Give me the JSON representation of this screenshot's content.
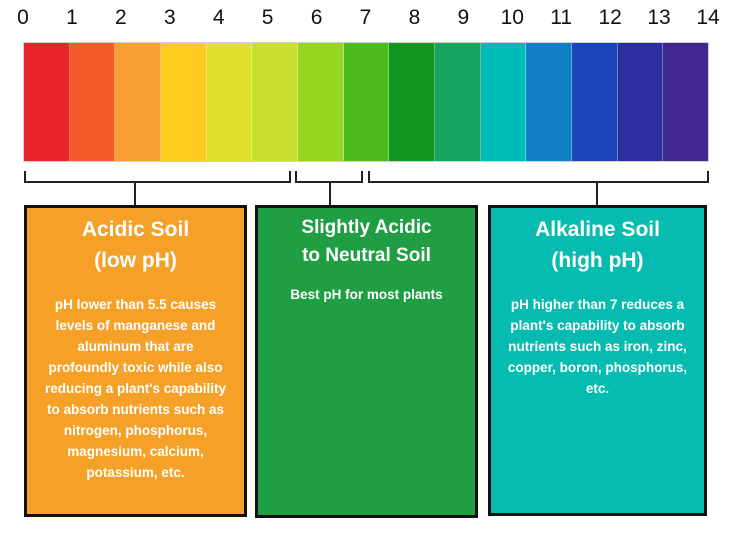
{
  "scale": {
    "labels": [
      "0",
      "1",
      "2",
      "3",
      "4",
      "5",
      "6",
      "7",
      "8",
      "9",
      "10",
      "11",
      "12",
      "13",
      "14"
    ],
    "colors": [
      "#e92328",
      "#f55a2a",
      "#f8a130",
      "#fccb1d",
      "#e0e12b",
      "#c7df2e",
      "#96d623",
      "#4ebb1d",
      "#11971f",
      "#14a45e",
      "#00bcb8",
      "#1180c7",
      "#1b45ba",
      "#2d2ea0",
      "#432791"
    ]
  },
  "panels": {
    "acidic": {
      "title_line1": "Acidic Soil",
      "title_line2": "(low pH)",
      "body": "pH lower than 5.5 causes levels of manganese and aluminum that are profoundly toxic while also reducing a plant's capability to absorb nutrients such as nitrogen, phosphorus, magnesium, calcium, potassium, etc.",
      "color": "#f5a127"
    },
    "neutral": {
      "title_line1": "Slightly Acidic",
      "title_line2": "to Neutral Soil",
      "body": "Best pH for most plants",
      "color": "#1f9e44"
    },
    "alkaline": {
      "title_line1": "Alkaline Soil",
      "title_line2": "(high pH)",
      "body": "pH higher than 7 reduces a plant's capability to absorb nutrients such as iron, zinc, copper, boron, phosphorus, etc.",
      "color": "#06bcb0"
    }
  }
}
